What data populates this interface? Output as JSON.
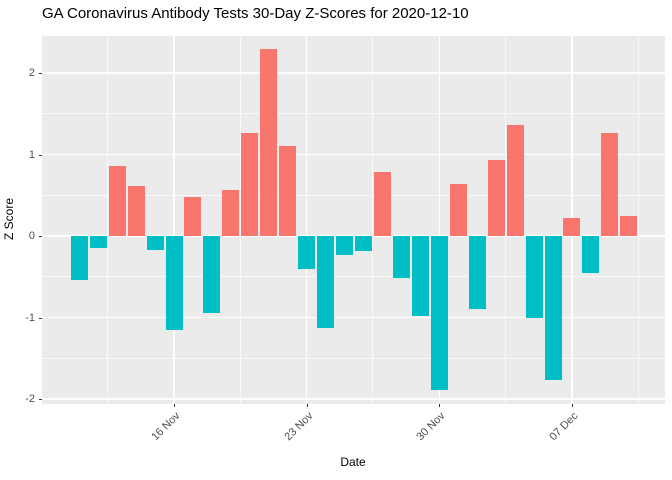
{
  "title": "GA Coronavirus Antibody Tests 30-Day Z-Scores for 2020-12-10",
  "chart_data": {
    "type": "bar",
    "title": "GA Coronavirus Antibody Tests 30-Day Z-Scores for 2020-12-10",
    "xlabel": "Date",
    "ylabel": "Z Score",
    "ylim": [
      -2.06,
      2.45
    ],
    "grid": "on",
    "legend": "none",
    "x": [
      "2020-11-11",
      "2020-11-12",
      "2020-11-13",
      "2020-11-14",
      "2020-11-15",
      "2020-11-16",
      "2020-11-17",
      "2020-11-18",
      "2020-11-19",
      "2020-11-20",
      "2020-11-21",
      "2020-11-22",
      "2020-11-23",
      "2020-11-24",
      "2020-11-25",
      "2020-11-26",
      "2020-11-27",
      "2020-11-28",
      "2020-11-29",
      "2020-11-30",
      "2020-12-01",
      "2020-12-02",
      "2020-12-03",
      "2020-12-04",
      "2020-12-05",
      "2020-12-06",
      "2020-12-07",
      "2020-12-08",
      "2020-12-09",
      "2020-12-10"
    ],
    "values": [
      -0.54,
      -0.15,
      0.86,
      0.61,
      -0.17,
      -1.15,
      0.48,
      -0.94,
      0.56,
      1.26,
      2.29,
      1.1,
      -0.4,
      -1.13,
      -0.23,
      -0.19,
      0.79,
      -0.51,
      -0.98,
      -1.89,
      0.64,
      -0.89,
      0.93,
      1.36,
      -1.0,
      -1.77,
      0.22,
      -0.46,
      1.26,
      0.24
    ],
    "y_major_ticks": [
      2,
      1,
      0,
      -1,
      -2
    ],
    "y_tick_labels": [
      "2",
      "1",
      "0",
      "-1",
      "-2"
    ],
    "y_minor_ticks": [
      1.5,
      0.5,
      -0.5,
      -1.5
    ],
    "x_ticks": [
      {
        "index": 5,
        "label": "16 Nov"
      },
      {
        "index": 12,
        "label": "23 Nov"
      },
      {
        "index": 19,
        "label": "30 Nov"
      },
      {
        "index": 26,
        "label": "07 Dec"
      }
    ],
    "x_major_grid_indices": [
      -2,
      5,
      12,
      19,
      26
    ],
    "x_minor_grid_indices": [
      1.5,
      8.5,
      15.5,
      22.5,
      29.5
    ],
    "colors": {
      "positive_bar": "#F8766D",
      "negative_bar": "#00BFC4",
      "panel_background": "#EBEBEB",
      "gridline": "#FFFFFF",
      "axis_text": "#4D4D4D",
      "title_text": "#000000",
      "tick_mark": "#333333"
    }
  }
}
